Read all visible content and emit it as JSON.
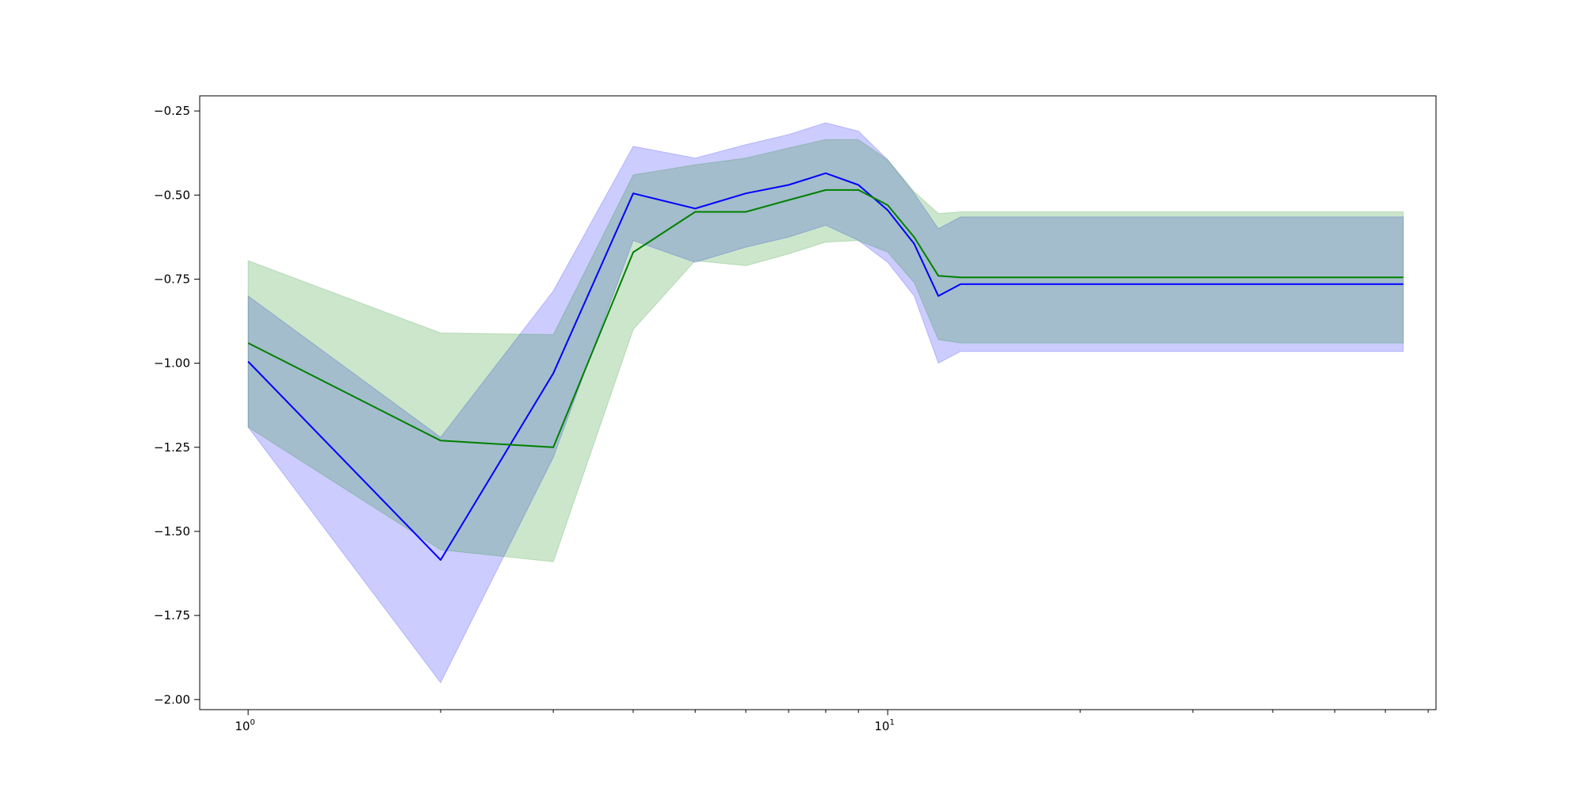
{
  "chart_data": {
    "type": "line",
    "title": "",
    "xlabel": "",
    "ylabel": "",
    "x_scale": "log",
    "xlim": [
      0.84,
      72
    ],
    "ylim": [
      -2.03,
      -0.205
    ],
    "grid": false,
    "legend": "none",
    "x_ticks": [
      {
        "value": 1,
        "base": "10",
        "exp": "0"
      },
      {
        "value": 10,
        "base": "10",
        "exp": "1"
      }
    ],
    "y_ticks": [
      {
        "value": -0.25,
        "label": "−0.25"
      },
      {
        "value": -0.5,
        "label": "−0.50"
      },
      {
        "value": -0.75,
        "label": "−0.75"
      },
      {
        "value": -1.0,
        "label": "−1.00"
      },
      {
        "value": -1.25,
        "label": "−1.25"
      },
      {
        "value": -1.5,
        "label": "−1.50"
      },
      {
        "value": -1.75,
        "label": "−1.75"
      },
      {
        "value": -2.0,
        "label": "−2.00"
      }
    ],
    "x": [
      1,
      2,
      3,
      4,
      5,
      6,
      7,
      8,
      9,
      10,
      11,
      12,
      13,
      64
    ],
    "series": [
      {
        "color": "#0000ff",
        "band_color": "#0000ff",
        "band_opacity": 0.2,
        "mean": [
          -0.995,
          -1.585,
          -1.03,
          -0.495,
          -0.54,
          -0.495,
          -0.47,
          -0.435,
          -0.47,
          -0.545,
          -0.645,
          -0.8,
          -0.765,
          -0.765
        ],
        "lower": [
          -1.19,
          -1.95,
          -1.28,
          -0.635,
          -0.7,
          -0.655,
          -0.625,
          -0.59,
          -0.635,
          -0.7,
          -0.8,
          -1.0,
          -0.965,
          -0.965
        ],
        "upper": [
          -0.8,
          -1.22,
          -0.785,
          -0.355,
          -0.39,
          -0.35,
          -0.32,
          -0.285,
          -0.31,
          -0.395,
          -0.495,
          -0.6,
          -0.565,
          -0.565
        ]
      },
      {
        "color": "#008000",
        "band_color": "#008000",
        "band_opacity": 0.2,
        "mean": [
          -0.94,
          -1.23,
          -1.25,
          -0.67,
          -0.55,
          -0.55,
          -0.515,
          -0.485,
          -0.485,
          -0.53,
          -0.625,
          -0.74,
          -0.745,
          -0.745
        ],
        "lower": [
          -1.19,
          -1.555,
          -1.59,
          -0.9,
          -0.695,
          -0.71,
          -0.675,
          -0.64,
          -0.635,
          -0.67,
          -0.76,
          -0.93,
          -0.94,
          -0.94
        ],
        "upper": [
          -0.695,
          -0.91,
          -0.915,
          -0.44,
          -0.41,
          -0.39,
          -0.36,
          -0.335,
          -0.335,
          -0.395,
          -0.49,
          -0.555,
          -0.55,
          -0.55
        ]
      }
    ]
  }
}
